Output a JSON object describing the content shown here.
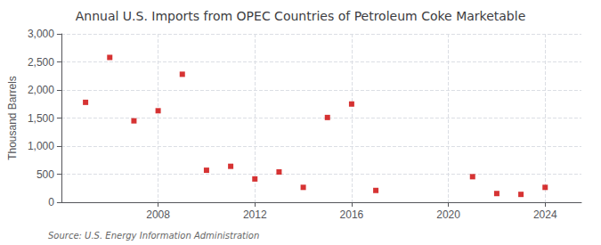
{
  "chart_data": {
    "type": "scatter",
    "title": "Annual U.S. Imports from OPEC Countries of Petroleum Coke Marketable",
    "ylabel": "Thousand Barrels",
    "source": "Source: U.S. Energy Information Administration",
    "x": [
      2005,
      2006,
      2007,
      2008,
      2009,
      2010,
      2011,
      2012,
      2013,
      2014,
      2015,
      2016,
      2017,
      2021,
      2022,
      2023,
      2024
    ],
    "values": [
      1780,
      2580,
      1450,
      1630,
      2280,
      570,
      640,
      415,
      540,
      265,
      1510,
      1750,
      210,
      455,
      155,
      140,
      265
    ],
    "color": "#cc0000",
    "marker": "square",
    "xlim": [
      2004,
      2025.5
    ],
    "xticks": [
      2008,
      2012,
      2016,
      2020,
      2024
    ],
    "ylim": [
      0,
      3000
    ],
    "yticks": [
      0,
      500,
      {
        "value": 1000,
        "label": "1,000"
      },
      {
        "value": 1500,
        "label": "1,500"
      },
      {
        "value": 2000,
        "label": "2,000"
      },
      {
        "value": 2500,
        "label": "2,500"
      },
      {
        "value": 3000,
        "label": "3,000"
      }
    ],
    "grid": true
  }
}
